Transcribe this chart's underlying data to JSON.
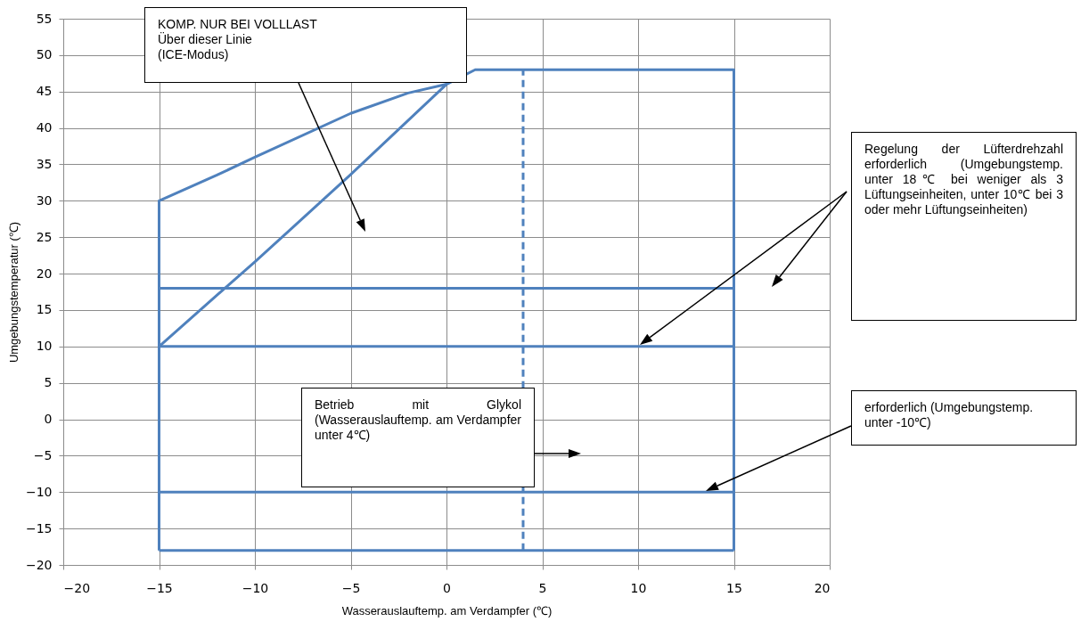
{
  "chart_data": {
    "type": "line",
    "xlabel": "Wasserauslauftemp. am Verdampfer (℃)",
    "ylabel": "Umgebungstemperatur (℃)",
    "xlim": [
      -20,
      20
    ],
    "xticks": [
      -20,
      -15,
      -10,
      -5,
      0,
      5,
      10,
      15,
      20
    ],
    "ylim": [
      -20,
      55
    ],
    "yticks": [
      -20,
      -15,
      -10,
      -5,
      0,
      5,
      10,
      15,
      20,
      25,
      30,
      35,
      40,
      45,
      50,
      55
    ],
    "grid": true,
    "series": [
      {
        "color": "#4f81bd",
        "x": [
          -15,
          -15,
          -12,
          -10,
          -5,
          -2,
          0,
          1.5,
          15,
          15
        ],
        "values": [
          -18,
          30,
          33.5,
          36,
          42,
          44.8,
          46,
          48,
          48,
          -18
        ]
      },
      {
        "color": "#4f81bd",
        "x": [
          -15,
          15
        ],
        "values": [
          -18,
          -18
        ]
      },
      {
        "color": "#4f81bd",
        "x": [
          -15,
          -12,
          -10,
          -5,
          0
        ],
        "values": [
          10,
          17,
          21.6,
          33.6,
          46
        ]
      },
      {
        "color": "#4f81bd",
        "x": [
          -15,
          15
        ],
        "values": [
          18,
          18
        ]
      },
      {
        "color": "#4f81bd",
        "x": [
          -15,
          15
        ],
        "values": [
          10,
          10
        ]
      },
      {
        "color": "#4f81bd",
        "x": [
          -15,
          15
        ],
        "values": [
          -10,
          -10
        ]
      },
      {
        "color": "#4f81bd",
        "x": [
          4,
          4
        ],
        "values": [
          -18,
          48
        ],
        "line_style": "dashed"
      }
    ],
    "annotations": [
      "KOMP. NUR BEI VOLLLAST\nÜber dieser Linie\n(ICE-Modus)",
      "Regelung der Lüfterdrehzahl erforderlich (Umgebungstemp. unter 18℃ bei weniger als 3 Lüftungseinheiten, unter 10℃ bei 3 oder mehr Lüftungseinheiten)",
      "Betrieb mit Glykol (Wasserauslauftemp. am Verdampfer unter 4℃)",
      "erforderlich (Umgebungstemp. unter -10℃)"
    ]
  }
}
